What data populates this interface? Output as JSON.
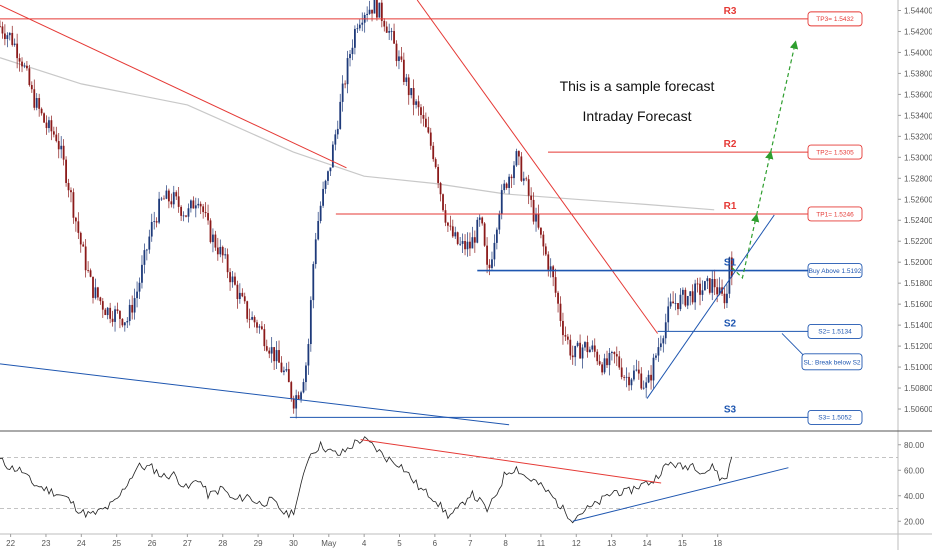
{
  "chart_data": {
    "type": "line",
    "price_panel": {
      "ylim": [
        1.504,
        1.545
      ],
      "yticks": [
        1.506,
        1.508,
        1.51,
        1.512,
        1.514,
        1.516,
        1.518,
        1.52,
        1.522,
        1.524,
        1.526,
        1.528,
        1.53,
        1.532,
        1.534,
        1.536,
        1.538,
        1.54,
        1.542,
        1.544
      ],
      "ytick_labels": [
        "1.50600",
        "1.50800",
        "1.51000",
        "1.51200",
        "1.51400",
        "1.51600",
        "1.51800",
        "1.52000",
        "1.52200",
        "1.52400",
        "1.52600",
        "1.52800",
        "1.53000",
        "1.53200",
        "1.53400",
        "1.53600",
        "1.53800",
        "1.54000",
        "1.54200",
        "1.54400"
      ],
      "price_path": [
        [
          21.7,
          1.5425
        ],
        [
          22.0,
          1.5415
        ],
        [
          22.3,
          1.5395
        ],
        [
          22.6,
          1.536
        ],
        [
          23.0,
          1.533
        ],
        [
          23.3,
          1.532
        ],
        [
          23.6,
          1.528
        ],
        [
          24.0,
          1.5215
        ],
        [
          24.3,
          1.5175
        ],
        [
          24.7,
          1.5155
        ],
        [
          25.0,
          1.515
        ],
        [
          25.3,
          1.5145
        ],
        [
          25.6,
          1.5175
        ],
        [
          26.0,
          1.5235
        ],
        [
          26.3,
          1.526
        ],
        [
          26.6,
          1.526
        ],
        [
          27.0,
          1.5245
        ],
        [
          27.3,
          1.5265
        ],
        [
          27.6,
          1.523
        ],
        [
          28.0,
          1.5205
        ],
        [
          28.3,
          1.518
        ],
        [
          28.7,
          1.515
        ],
        [
          29.0,
          1.514
        ],
        [
          29.4,
          1.5115
        ],
        [
          29.8,
          1.509
        ],
        [
          30.0,
          1.5068
        ],
        [
          30.2,
          1.508
        ],
        [
          30.4,
          1.511
        ],
        [
          30.6,
          1.522
        ],
        [
          30.8,
          1.526
        ],
        [
          31.0,
          1.5285
        ],
        [
          31.3,
          1.5345
        ],
        [
          31.6,
          1.54
        ],
        [
          31.8,
          1.543
        ],
        [
          32.0,
          1.544
        ],
        [
          32.3,
          1.5445
        ],
        [
          32.6,
          1.543
        ],
        [
          33.0,
          1.539
        ],
        [
          33.3,
          1.536
        ],
        [
          33.6,
          1.534
        ],
        [
          34.0,
          1.53
        ],
        [
          34.2,
          1.526
        ],
        [
          34.4,
          1.523
        ],
        [
          34.7,
          1.5215
        ],
        [
          35.0,
          1.5215
        ],
        [
          35.3,
          1.524
        ],
        [
          35.5,
          1.5185
        ],
        [
          35.8,
          1.525
        ],
        [
          36.0,
          1.5275
        ],
        [
          36.3,
          1.53
        ],
        [
          36.6,
          1.527
        ],
        [
          36.8,
          1.5245
        ],
        [
          37.1,
          1.521
        ],
        [
          37.3,
          1.519
        ],
        [
          37.6,
          1.514
        ],
        [
          37.9,
          1.511
        ],
        [
          38.2,
          1.512
        ],
        [
          38.5,
          1.5115
        ],
        [
          38.8,
          1.51
        ],
        [
          39.1,
          1.511
        ],
        [
          39.4,
          1.509
        ],
        [
          39.7,
          1.5095
        ],
        [
          40.0,
          1.508
        ],
        [
          40.2,
          1.5105
        ],
        [
          40.4,
          1.513
        ],
        [
          40.7,
          1.516
        ],
        [
          41.0,
          1.5165
        ],
        [
          41.3,
          1.517
        ],
        [
          41.6,
          1.5175
        ],
        [
          41.9,
          1.518
        ],
        [
          42.1,
          1.5165
        ],
        [
          42.3,
          1.517
        ],
        [
          42.35,
          1.523
        ],
        [
          42.4,
          1.5195
        ]
      ],
      "ma_path": [
        [
          21.7,
          1.5395
        ],
        [
          24,
          1.537
        ],
        [
          27,
          1.535
        ],
        [
          30,
          1.5305
        ],
        [
          32,
          1.5282
        ],
        [
          34,
          1.5275
        ],
        [
          36,
          1.5265
        ],
        [
          38,
          1.526
        ],
        [
          40,
          1.5255
        ],
        [
          41.9,
          1.525
        ]
      ],
      "trendlines": [
        {
          "name": "red-trendline-1",
          "color": "#e53935",
          "x1": 21.7,
          "y1": 1.5445,
          "x2": 31.5,
          "y2": 1.529
        },
        {
          "name": "red-trendline-2",
          "color": "#e53935",
          "x1": 33.5,
          "y1": 1.545,
          "x2": 40.3,
          "y2": 1.5132
        },
        {
          "name": "blue-trendline-low",
          "color": "#1e56b0",
          "x1": 21.7,
          "y1": 1.5103,
          "x2": 36.1,
          "y2": 1.5045
        },
        {
          "name": "blue-trendline-up",
          "color": "#1e56b0",
          "x1": 40.0,
          "y1": 1.507,
          "x2": 43.6,
          "y2": 1.5245
        }
      ],
      "levels": [
        {
          "id": "R3",
          "label": "R3",
          "value": 1.5432,
          "color": "#e53935",
          "x_start": 21.7,
          "tag": "TP3= 1.5432"
        },
        {
          "id": "R2",
          "label": "R2",
          "value": 1.5305,
          "color": "#e53935",
          "x_start": 37.2,
          "tag": "TP2= 1.5305"
        },
        {
          "id": "R1",
          "label": "R1",
          "value": 1.5246,
          "color": "#e53935",
          "x_start": 31.2,
          "tag": "TP1= 1.5246"
        },
        {
          "id": "S1",
          "label": "S1",
          "value": 1.5192,
          "color": "#1e56b0",
          "x_start": 35.2,
          "tag": "Buy Above 1.5192"
        },
        {
          "id": "S2",
          "label": "S2",
          "value": 1.5134,
          "color": "#1e56b0",
          "x_start": 40.3,
          "tag": "S2= 1.5134"
        },
        {
          "id": "S3",
          "label": "S3",
          "value": 1.5052,
          "color": "#1e56b0",
          "x_start": 29.9,
          "tag": "S3= 1.5052"
        }
      ],
      "sl_note": "SL: Break below S2",
      "forecast_arrows": [
        [
          [
            42.4,
            1.5195
          ],
          [
            42.7,
            1.5185
          ],
          [
            43.1,
            1.5245
          ]
        ],
        [
          [
            43.1,
            1.5245
          ],
          [
            43.5,
            1.5305
          ]
        ],
        [
          [
            43.5,
            1.5305
          ],
          [
            44.2,
            1.541
          ]
        ]
      ],
      "annotations": [
        "This is a sample forecast",
        "Intraday Forecast"
      ]
    },
    "rsi_panel": {
      "ylim": [
        10,
        90
      ],
      "yticks": [
        20,
        40,
        60,
        80
      ],
      "ytick_labels": [
        "20.00",
        "40.00",
        "60.00",
        "80.00"
      ],
      "dashed_levels": [
        30,
        70
      ],
      "rsi_path": [
        [
          21.7,
          68
        ],
        [
          22.0,
          62
        ],
        [
          22.3,
          60
        ],
        [
          22.6,
          50
        ],
        [
          23.0,
          45
        ],
        [
          23.3,
          42
        ],
        [
          23.6,
          38
        ],
        [
          24.0,
          27
        ],
        [
          24.3,
          25
        ],
        [
          24.7,
          30
        ],
        [
          25.0,
          36
        ],
        [
          25.3,
          50
        ],
        [
          25.6,
          63
        ],
        [
          26.0,
          62
        ],
        [
          26.3,
          55
        ],
        [
          26.6,
          57
        ],
        [
          27.0,
          45
        ],
        [
          27.3,
          54
        ],
        [
          27.6,
          40
        ],
        [
          28.0,
          46
        ],
        [
          28.3,
          36
        ],
        [
          28.7,
          40
        ],
        [
          29.0,
          34
        ],
        [
          29.4,
          36
        ],
        [
          29.8,
          25
        ],
        [
          30.0,
          28
        ],
        [
          30.2,
          45
        ],
        [
          30.4,
          70
        ],
        [
          30.6,
          76
        ],
        [
          30.8,
          80
        ],
        [
          31.0,
          75
        ],
        [
          31.3,
          72
        ],
        [
          31.6,
          78
        ],
        [
          31.8,
          83
        ],
        [
          32.0,
          84
        ],
        [
          32.3,
          78
        ],
        [
          32.6,
          70
        ],
        [
          33.0,
          65
        ],
        [
          33.3,
          55
        ],
        [
          33.6,
          45
        ],
        [
          34.0,
          38
        ],
        [
          34.2,
          30
        ],
        [
          34.4,
          24
        ],
        [
          34.7,
          30
        ],
        [
          35.0,
          42
        ],
        [
          35.3,
          35
        ],
        [
          35.5,
          28
        ],
        [
          35.8,
          45
        ],
        [
          36.0,
          58
        ],
        [
          36.3,
          62
        ],
        [
          36.6,
          54
        ],
        [
          36.8,
          52
        ],
        [
          37.1,
          45
        ],
        [
          37.3,
          40
        ],
        [
          37.6,
          30
        ],
        [
          37.9,
          22
        ],
        [
          38.2,
          28
        ],
        [
          38.5,
          32
        ],
        [
          38.8,
          38
        ],
        [
          39.1,
          44
        ],
        [
          39.4,
          42
        ],
        [
          39.7,
          47
        ],
        [
          40.0,
          50
        ],
        [
          40.2,
          52
        ],
        [
          40.4,
          60
        ],
        [
          40.7,
          66
        ],
        [
          41.0,
          62
        ],
        [
          41.3,
          65
        ],
        [
          41.6,
          58
        ],
        [
          41.9,
          63
        ],
        [
          42.1,
          52
        ],
        [
          42.3,
          55
        ],
        [
          42.35,
          70
        ],
        [
          42.4,
          72
        ]
      ],
      "trendlines": [
        {
          "name": "rsi-red-trendline",
          "color": "#e53935",
          "x1": 31.9,
          "y1": 84,
          "x2": 40.4,
          "y2": 50
        },
        {
          "name": "rsi-blue-trendline",
          "color": "#1e56b0",
          "x1": 37.9,
          "y1": 20,
          "x2": 44.0,
          "y2": 62
        }
      ]
    },
    "x_axis": {
      "xlim": [
        21.7,
        47.1
      ],
      "ticks": [
        {
          "x": 22,
          "label": "22"
        },
        {
          "x": 23,
          "label": "23"
        },
        {
          "x": 24,
          "label": "24"
        },
        {
          "x": 25,
          "label": "25"
        },
        {
          "x": 26,
          "label": "26"
        },
        {
          "x": 27,
          "label": "27"
        },
        {
          "x": 28,
          "label": "28"
        },
        {
          "x": 29,
          "label": "29"
        },
        {
          "x": 30,
          "label": "30"
        },
        {
          "x": 31,
          "label": "May"
        },
        {
          "x": 32,
          "label": "4"
        },
        {
          "x": 33,
          "label": "5"
        },
        {
          "x": 34,
          "label": "6"
        },
        {
          "x": 35,
          "label": "7"
        },
        {
          "x": 36,
          "label": "8"
        },
        {
          "x": 37,
          "label": "11"
        },
        {
          "x": 38,
          "label": "12"
        },
        {
          "x": 39,
          "label": "13"
        },
        {
          "x": 40,
          "label": "14"
        },
        {
          "x": 41,
          "label": "15"
        },
        {
          "x": 42,
          "label": "18"
        }
      ]
    }
  }
}
